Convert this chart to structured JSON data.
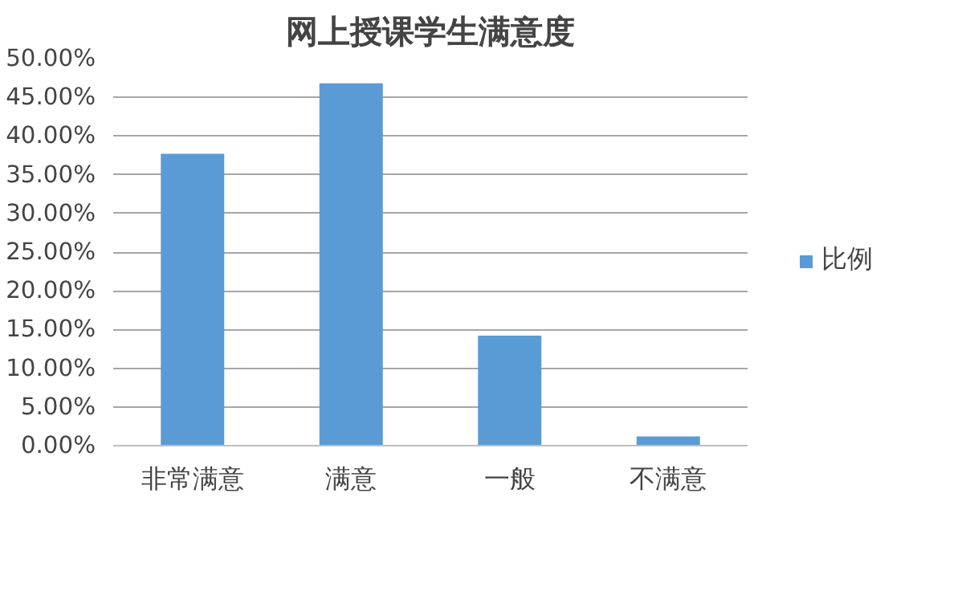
{
  "chart_data": {
    "type": "bar",
    "title": "网上授课学生满意度",
    "categories": [
      "非常满意",
      "满意",
      "一般",
      "不满意"
    ],
    "series": [
      {
        "name": "比例",
        "color": "#5b9bd5",
        "values": [
          37.7,
          46.8,
          14.2,
          1.2
        ]
      }
    ],
    "ylim": [
      0,
      50
    ],
    "yticks": [
      {
        "value": 0,
        "label": "0.00%"
      },
      {
        "value": 5,
        "label": "5.00%"
      },
      {
        "value": 10,
        "label": "10.00%"
      },
      {
        "value": 15,
        "label": "15.00%"
      },
      {
        "value": 20,
        "label": "20.00%"
      },
      {
        "value": 25,
        "label": "25.00%"
      },
      {
        "value": 30,
        "label": "30.00%"
      },
      {
        "value": 35,
        "label": "35.00%"
      },
      {
        "value": 40,
        "label": "40.00%"
      },
      {
        "value": 45,
        "label": "45.00%"
      },
      {
        "value": 50,
        "label": "50.00%"
      }
    ],
    "grid": "y",
    "legend": "right"
  }
}
